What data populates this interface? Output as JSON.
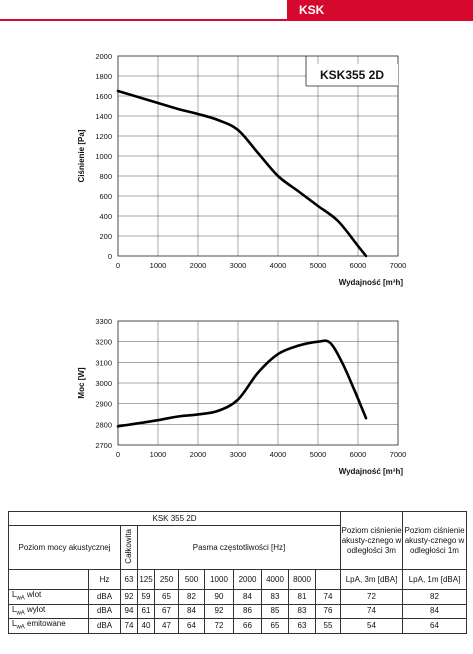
{
  "header": {
    "brand_tab": "KSK"
  },
  "chart_data": [
    {
      "type": "line",
      "title": "KSK355 2D",
      "xlabel": "Wydajność [m³h]",
      "ylabel": "Ciśnienie [Pa]",
      "xlim": [
        0,
        7000
      ],
      "ylim": [
        0,
        2000
      ],
      "x_ticks": [
        0,
        1000,
        2000,
        3000,
        4000,
        5000,
        6000,
        7000
      ],
      "y_ticks": [
        0,
        200,
        400,
        600,
        800,
        1000,
        1200,
        1400,
        1600,
        1800,
        2000
      ],
      "grid": true,
      "series": [
        {
          "x": [
            0,
            500,
            1000,
            1500,
            2000,
            2500,
            3000,
            3500,
            4000,
            4500,
            5000,
            5500,
            6000,
            6200
          ],
          "y": [
            1650,
            1590,
            1530,
            1470,
            1420,
            1360,
            1260,
            1030,
            800,
            650,
            500,
            350,
            100,
            0
          ]
        }
      ]
    },
    {
      "type": "line",
      "title": "",
      "xlabel": "Wydajność [m³h]",
      "ylabel": "Moc [W]",
      "xlim": [
        0,
        7000
      ],
      "ylim": [
        2700,
        3300
      ],
      "x_ticks": [
        0,
        1000,
        2000,
        3000,
        4000,
        5000,
        6000,
        7000
      ],
      "y_ticks": [
        2700,
        2800,
        2900,
        3000,
        3100,
        3200,
        3300
      ],
      "grid": true,
      "series": [
        {
          "x": [
            0,
            500,
            1000,
            1500,
            2000,
            2500,
            3000,
            3500,
            4000,
            4500,
            5000,
            5300,
            5600,
            5900,
            6200
          ],
          "y": [
            2790,
            2805,
            2820,
            2838,
            2848,
            2865,
            2920,
            3050,
            3140,
            3180,
            3200,
            3195,
            3100,
            2970,
            2830
          ]
        }
      ]
    }
  ],
  "noise_table": {
    "model": "KSK 355 2D",
    "row_header": "Poziom mocy akustycznej",
    "total_header": "Całkowita",
    "bands_header": "Pasma częstotliwości [Hz]",
    "lpa3_header": "Poziom ciśnienie akusty-cznego w odległości 3m",
    "lpa1_header": "Poziom ciśnienie akusty-cznego w odległości 1m",
    "hz_label": "Hz",
    "bands": [
      "63",
      "125",
      "250",
      "500",
      "1000",
      "2000",
      "4000",
      "8000"
    ],
    "lpa3_unit": "LpA, 3m [dBA]",
    "lpa1_unit": "LpA, 1m [dBA]",
    "rows": [
      {
        "name": "wlot",
        "unit": "dBA",
        "total": "92",
        "values": [
          "59",
          "65",
          "82",
          "90",
          "84",
          "83",
          "81",
          "74"
        ],
        "lpa3": "72",
        "lpa1": "82"
      },
      {
        "name": "wylot",
        "unit": "dBA",
        "total": "94",
        "values": [
          "61",
          "67",
          "84",
          "92",
          "86",
          "85",
          "83",
          "76"
        ],
        "lpa3": "74",
        "lpa1": "84"
      },
      {
        "name": "emitowane",
        "unit": "dBA",
        "total": "74",
        "values": [
          "40",
          "47",
          "64",
          "72",
          "66",
          "65",
          "63",
          "55"
        ],
        "lpa3": "54",
        "lpa1": "64"
      }
    ],
    "lwa_symbol": "L",
    "lwa_sub": "wA"
  }
}
